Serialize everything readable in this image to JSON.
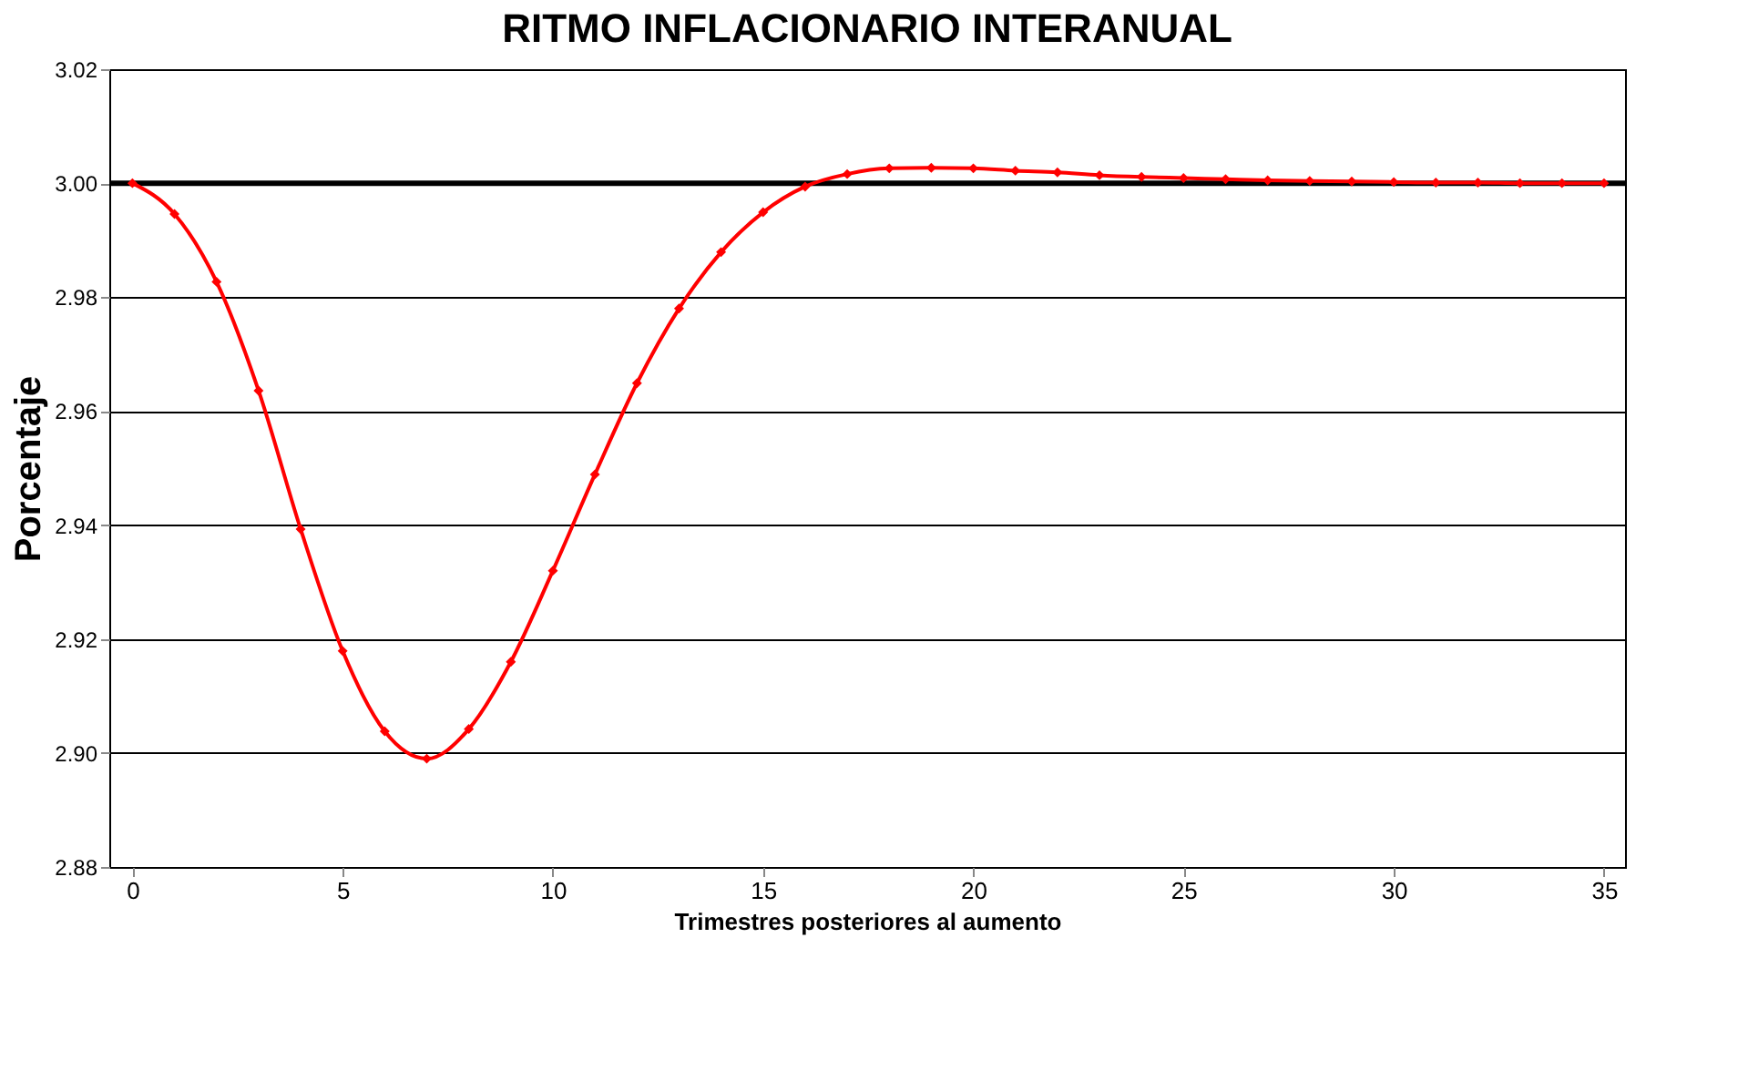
{
  "chart_data": {
    "type": "line",
    "title": "RITMO INFLACIONARIO INTERANUAL",
    "xlabel": "Trimestres posteriores al  aumento",
    "ylabel": "Porcentaje",
    "x": [
      0,
      1,
      2,
      3,
      4,
      5,
      6,
      7,
      8,
      9,
      10,
      11,
      12,
      13,
      14,
      15,
      16,
      17,
      18,
      19,
      20,
      21,
      22,
      23,
      24,
      25,
      26,
      27,
      28,
      29,
      30,
      31,
      32,
      33,
      34,
      35
    ],
    "series": [
      {
        "color": "#ff0000",
        "values": [
          3.0,
          2.9946,
          2.9827,
          2.9636,
          2.9393,
          2.9179,
          2.9038,
          2.899,
          2.9042,
          2.916,
          2.932,
          2.9489,
          2.9649,
          2.978,
          2.9879,
          2.9949,
          2.9994,
          3.0016,
          3.0026,
          3.0027,
          3.0026,
          3.0022,
          3.0019,
          3.0014,
          3.0011,
          3.0009,
          3.0007,
          3.0005,
          3.0004,
          3.0003,
          3.0002,
          3.0001,
          3.0001,
          3.0,
          3.0,
          3.0
        ]
      }
    ],
    "xlim": [
      -0.55,
      35.5
    ],
    "xticks": [
      0,
      5,
      10,
      15,
      20,
      25,
      30,
      35
    ],
    "ylim": [
      2.88,
      3.02
    ],
    "yticks": [
      {
        "value": 2.88,
        "label": "2.88"
      },
      {
        "value": 2.9,
        "label": "2.90"
      },
      {
        "value": 2.92,
        "label": "2.92"
      },
      {
        "value": 2.94,
        "label": "2.94"
      },
      {
        "value": 2.96,
        "label": "2.96"
      },
      {
        "value": 2.98,
        "label": "2.98"
      },
      {
        "value": 3.0,
        "label": "3.00"
      },
      {
        "value": 3.02,
        "label": "3.02"
      }
    ],
    "ref_lines": [
      {
        "axis": "y",
        "value": 3.0,
        "color": "#000000"
      }
    ],
    "grid": "y",
    "marker": "diamond",
    "line_style": "solid"
  }
}
